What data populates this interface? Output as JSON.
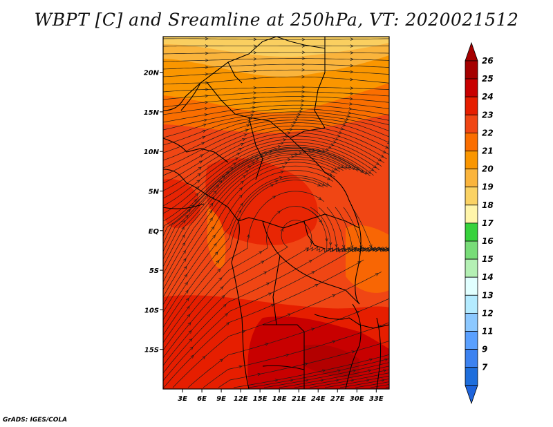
{
  "title": "WBPT [C] and Sreamline at 250hPa, VT: 2020021512",
  "credit": "GrADS: IGES/COLA",
  "map": {
    "lon_range": [
      0,
      35
    ],
    "lat_range": [
      -20,
      24.5
    ],
    "x_ticks": [
      {
        "value": 3,
        "label": "3E"
      },
      {
        "value": 6,
        "label": "6E"
      },
      {
        "value": 9,
        "label": "9E"
      },
      {
        "value": 12,
        "label": "12E"
      },
      {
        "value": 15,
        "label": "15E"
      },
      {
        "value": 18,
        "label": "18E"
      },
      {
        "value": 21,
        "label": "21E"
      },
      {
        "value": 24,
        "label": "24E"
      },
      {
        "value": 27,
        "label": "27E"
      },
      {
        "value": 30,
        "label": "30E"
      },
      {
        "value": 33,
        "label": "33E"
      }
    ],
    "y_ticks": [
      {
        "value": 20,
        "label": "20N"
      },
      {
        "value": 15,
        "label": "15N"
      },
      {
        "value": 10,
        "label": "10N"
      },
      {
        "value": 5,
        "label": "5N"
      },
      {
        "value": 0,
        "label": "EQ"
      },
      {
        "value": -5,
        "label": "5S"
      },
      {
        "value": -10,
        "label": "10S"
      },
      {
        "value": -15,
        "label": "15S"
      }
    ]
  },
  "colorbar": {
    "levels": [
      {
        "label": "26",
        "color": "#a50000"
      },
      {
        "label": "25",
        "color": "#c80000"
      },
      {
        "label": "24",
        "color": "#e61e00"
      },
      {
        "label": "23",
        "color": "#f04614"
      },
      {
        "label": "22",
        "color": "#fa6e00"
      },
      {
        "label": "21",
        "color": "#fa9600"
      },
      {
        "label": "20",
        "color": "#fab43c"
      },
      {
        "label": "19",
        "color": "#fad264"
      },
      {
        "label": "18",
        "color": "#fff5aa"
      },
      {
        "label": "17",
        "color": "#37d23c"
      },
      {
        "label": "16",
        "color": "#78dc78"
      },
      {
        "label": "15",
        "color": "#b4f0b4"
      },
      {
        "label": "14",
        "color": "#e1ffff"
      },
      {
        "label": "13",
        "color": "#b4ebff"
      },
      {
        "label": "12",
        "color": "#8cc8ff"
      },
      {
        "label": "11",
        "color": "#5aa0ff"
      },
      {
        "label": "9",
        "color": "#3c82f0"
      },
      {
        "label": "7",
        "color": "#1e6edc"
      }
    ],
    "top_arrow_color": "#a50000",
    "bottom_arrow_color": "#1e64dc"
  }
}
